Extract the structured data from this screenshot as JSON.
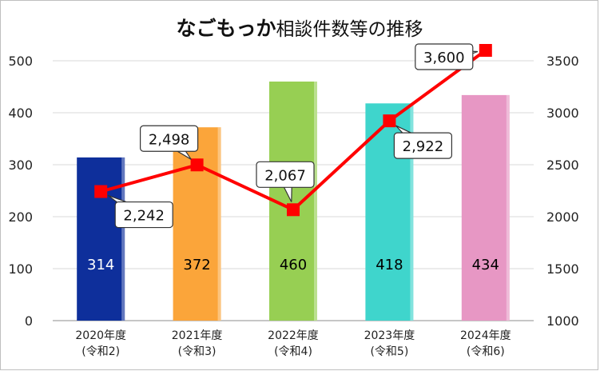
{
  "chart_data": {
    "type": "bar",
    "title_bold": "なごもっか",
    "title_rest": "相談件数等の推移",
    "categories": [
      [
        "2020年度",
        "(令和2)"
      ],
      [
        "2021年度",
        "(令和3)"
      ],
      [
        "2022年度",
        "(令和4)"
      ],
      [
        "2023年度",
        "(令和5)"
      ],
      [
        "2024年度",
        "(令和6)"
      ]
    ],
    "series": [
      {
        "type": "bar",
        "axis": "left",
        "values": [
          314,
          372,
          460,
          418,
          434
        ],
        "labels": [
          "314",
          "372",
          "460",
          "418",
          "434"
        ],
        "colors": [
          "#0e2f9b",
          "#fba53a",
          "#97cf53",
          "#3fd5cc",
          "#e797c4"
        ],
        "label_colors": [
          "#ffffff",
          "#000000",
          "#000000",
          "#000000",
          "#000000"
        ]
      },
      {
        "type": "line",
        "axis": "right",
        "values": [
          2242,
          2498,
          2067,
          2922,
          3600
        ],
        "labels": [
          "2,242",
          "2,498",
          "2,067",
          "2,922",
          "3,600"
        ],
        "color": "#ff0000"
      }
    ],
    "y_left": {
      "min": 0,
      "max": 500,
      "ticks": [
        "0",
        "100",
        "200",
        "300",
        "400",
        "500"
      ]
    },
    "y_right": {
      "min": 1000,
      "max": 3500,
      "ticks": [
        "1000",
        "1500",
        "2000",
        "2500",
        "3000",
        "3500"
      ]
    },
    "grid": true
  }
}
